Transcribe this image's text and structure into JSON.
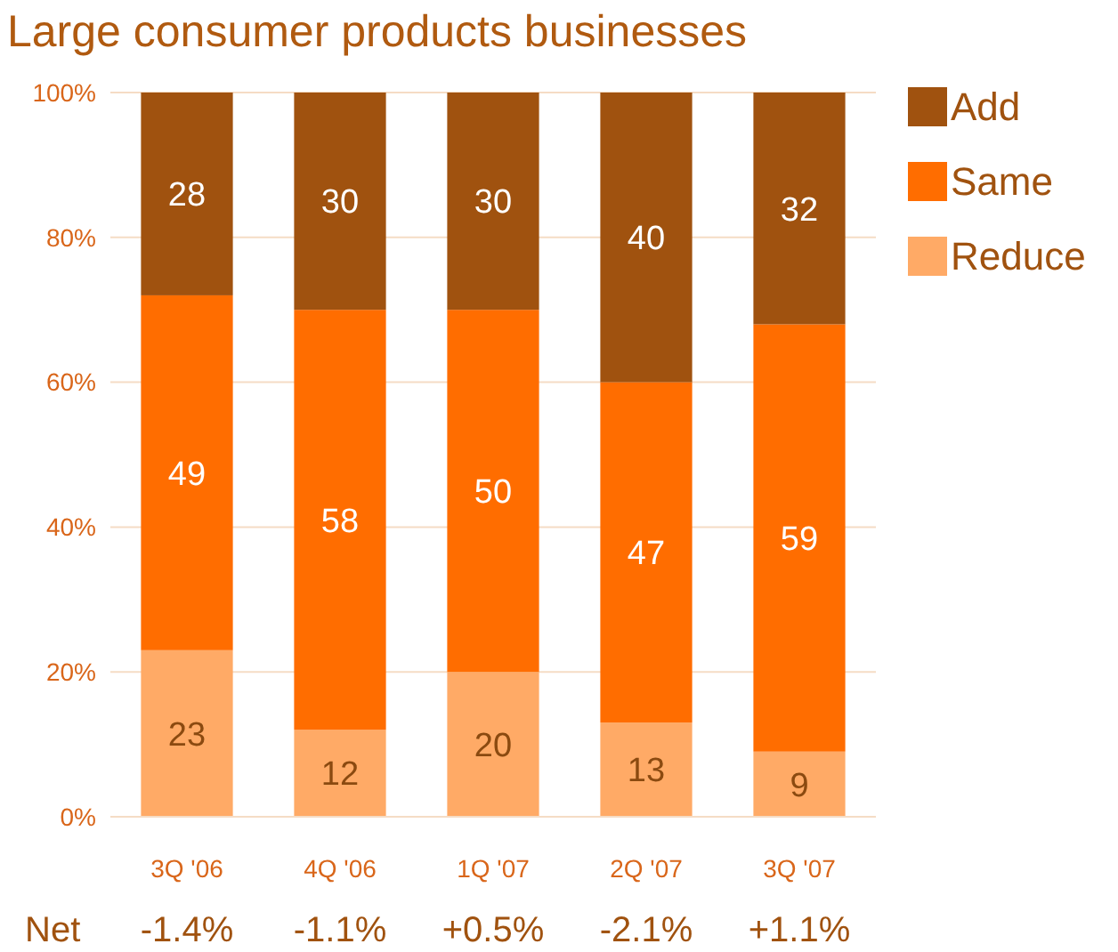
{
  "chart_data": {
    "type": "bar",
    "stacked": true,
    "title": "Large consumer products businesses",
    "categories": [
      "3Q '06",
      "4Q '06",
      "1Q '07",
      "2Q '07",
      "3Q '07"
    ],
    "series": [
      {
        "name": "Reduce",
        "color": "#ffaa66",
        "values": [
          23,
          12,
          20,
          13,
          9
        ]
      },
      {
        "name": "Same",
        "color": "#ff6d00",
        "values": [
          49,
          58,
          50,
          47,
          59
        ]
      },
      {
        "name": "Add",
        "color": "#a0520f",
        "values": [
          28,
          30,
          30,
          40,
          32
        ]
      }
    ],
    "ylim": [
      0,
      100
    ],
    "yticks": [
      {
        "value": 0,
        "label": "0%"
      },
      {
        "value": 20,
        "label": "20%"
      },
      {
        "value": 40,
        "label": "40%"
      },
      {
        "value": 60,
        "label": "60%"
      },
      {
        "value": 80,
        "label": "80%"
      },
      {
        "value": 100,
        "label": "100%"
      }
    ],
    "grid": "y",
    "legend": "right",
    "data_labels": true,
    "annotations": [
      "Net",
      "-1.4%",
      "-1.1%",
      "+0.5%",
      "-2.1%",
      "+1.1%"
    ]
  }
}
